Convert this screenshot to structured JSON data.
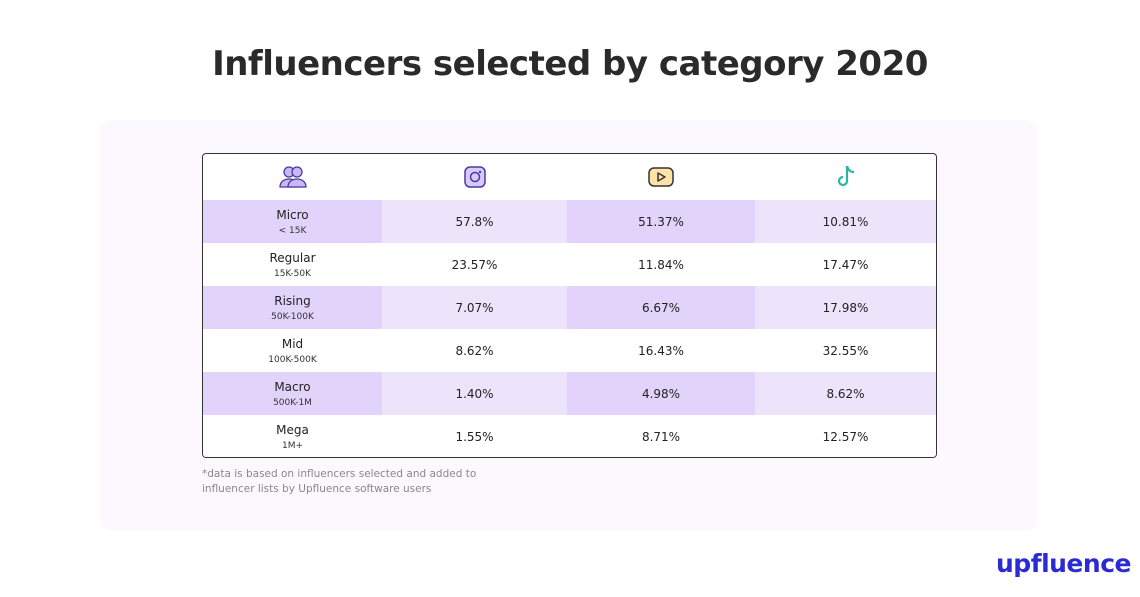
{
  "header": {
    "title": "Influencers selected by category 2020"
  },
  "table": {
    "rows": [
      {
        "name": "Micro",
        "range": "< 15K",
        "values": [
          "57.8%",
          "51.37%",
          "10.81%"
        ]
      },
      {
        "name": "Regular",
        "range": "15K-50K",
        "values": [
          "23.57%",
          "11.84%",
          "17.47%"
        ]
      },
      {
        "name": "Rising",
        "range": "50K-100K",
        "values": [
          "7.07%",
          "6.67%",
          "17.98%"
        ]
      },
      {
        "name": "Mid",
        "range": "100K-500K",
        "values": [
          "8.62%",
          "16.43%",
          "32.55%"
        ]
      },
      {
        "name": "Macro",
        "range": "500K-1M",
        "values": [
          "1.40%",
          "4.98%",
          "8.62%"
        ]
      },
      {
        "name": "Mega",
        "range": "1M+",
        "values": [
          "1.55%",
          "8.71%",
          "12.57%"
        ]
      }
    ]
  },
  "footnote": [
    "*data is based on influencers selected and added to",
    "influencer lists by Upfluence software users"
  ],
  "logo": "upfluence"
}
